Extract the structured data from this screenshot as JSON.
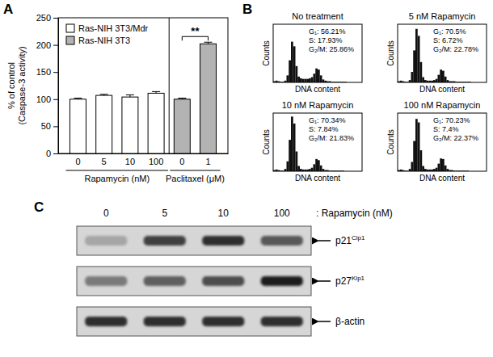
{
  "chart_data": [
    {
      "type": "bar",
      "panel": "A",
      "ylabel": [
        "% of control",
        "(Caspase-3 activity)"
      ],
      "categories": [
        "0",
        "5",
        "10",
        "100",
        "0",
        "1"
      ],
      "series": [
        {
          "name": "Ras-NIH 3T3/Mdr",
          "color": "#ffffff",
          "values": [
            100,
            107,
            104,
            111,
            null,
            null
          ],
          "errors": [
            2,
            2,
            4,
            3,
            null,
            null
          ]
        },
        {
          "name": "Ras-NIH 3T3",
          "color": "#b3b3b3",
          "values": [
            null,
            null,
            null,
            null,
            100,
            202
          ],
          "errors": [
            null,
            null,
            null,
            null,
            2,
            3
          ]
        }
      ],
      "x_groups": [
        {
          "label": "Rapamycin (nM)",
          "count": 4
        },
        {
          "label": "Paclitaxel (μM)",
          "count": 2
        }
      ],
      "ylim": [
        0,
        250
      ],
      "yticks": [
        0,
        50,
        100,
        150,
        200,
        250
      ],
      "legend": "top-left",
      "annotations": [
        {
          "text": "**",
          "between": [
            4,
            5
          ]
        }
      ]
    },
    {
      "type": "histogram",
      "panel": "B",
      "title": "No treatment",
      "xlabel": "DNA content",
      "ylabel": "Counts",
      "color": "#111111",
      "tick_labels": false,
      "xlim": [
        0,
        1000
      ],
      "ylim": [
        0,
        100
      ],
      "bins": [
        0,
        25,
        50,
        75,
        100,
        125,
        150,
        175,
        200,
        225,
        250,
        275,
        300,
        325,
        350,
        375,
        400,
        425,
        450,
        475,
        500,
        525,
        550,
        575,
        600,
        625,
        650,
        675,
        700,
        725,
        750,
        775,
        800,
        825,
        850,
        875,
        900,
        925,
        950,
        975,
        1000
      ],
      "values": [
        2,
        3,
        2,
        1,
        1,
        3,
        12,
        38,
        70,
        62,
        28,
        10,
        7,
        6,
        6,
        6,
        7,
        9,
        15,
        24,
        22,
        12,
        5,
        3,
        2,
        2,
        1,
        1,
        1,
        1,
        1,
        1,
        1,
        0,
        0,
        0,
        0,
        0,
        0,
        0
      ],
      "annotations": [
        "G₁: 56.21%",
        "S: 17.93%",
        "G₂/M: 25.86%"
      ]
    },
    {
      "type": "histogram",
      "title": "5 nM Rapamycin",
      "xlabel": "DNA content",
      "ylabel": "Counts",
      "color": "#111111",
      "tick_labels": false,
      "xlim": [
        0,
        1000
      ],
      "ylim": [
        0,
        100
      ],
      "bins": [
        0,
        25,
        50,
        75,
        100,
        125,
        150,
        175,
        200,
        225,
        250,
        275,
        300,
        325,
        350,
        375,
        400,
        425,
        450,
        475,
        500,
        525,
        550,
        575,
        600,
        625,
        650,
        675,
        700,
        725,
        750,
        775,
        800,
        825,
        850,
        875,
        900,
        925,
        950,
        975,
        1000
      ],
      "values": [
        2,
        3,
        2,
        1,
        1,
        4,
        18,
        55,
        92,
        80,
        35,
        9,
        4,
        3,
        3,
        3,
        4,
        6,
        13,
        22,
        20,
        10,
        4,
        2,
        2,
        2,
        1,
        1,
        1,
        1,
        1,
        1,
        1,
        0,
        0,
        0,
        0,
        0,
        0,
        0
      ],
      "annotations": [
        "G₁: 70.5%",
        "S: 6.72%",
        "G₂/M: 22.78%"
      ]
    },
    {
      "type": "histogram",
      "title": "10 nM Rapamycin",
      "xlabel": "DNA content",
      "ylabel": "Counts",
      "color": "#111111",
      "tick_labels": false,
      "xlim": [
        0,
        1000
      ],
      "ylim": [
        0,
        100
      ],
      "bins": [
        0,
        25,
        50,
        75,
        100,
        125,
        150,
        175,
        200,
        225,
        250,
        275,
        300,
        325,
        350,
        375,
        400,
        425,
        450,
        475,
        500,
        525,
        550,
        575,
        600,
        625,
        650,
        675,
        700,
        725,
        750,
        775,
        800,
        825,
        850,
        875,
        900,
        925,
        950,
        975,
        1000
      ],
      "values": [
        2,
        3,
        2,
        1,
        1,
        4,
        17,
        54,
        94,
        82,
        34,
        9,
        4,
        3,
        3,
        3,
        4,
        6,
        12,
        21,
        19,
        10,
        4,
        2,
        2,
        1,
        1,
        1,
        1,
        1,
        1,
        1,
        0,
        0,
        0,
        0,
        0,
        0,
        0,
        0
      ],
      "annotations": [
        "G₁: 70.34%",
        "S: 7.84%",
        "G₂/M: 21.83%"
      ]
    },
    {
      "type": "histogram",
      "title": "100 nM Rapamycin",
      "xlabel": "DNA content",
      "ylabel": "Counts",
      "color": "#111111",
      "tick_labels": false,
      "xlim": [
        0,
        1000
      ],
      "ylim": [
        0,
        100
      ],
      "bins": [
        0,
        25,
        50,
        75,
        100,
        125,
        150,
        175,
        200,
        225,
        250,
        275,
        300,
        325,
        350,
        375,
        400,
        425,
        450,
        475,
        500,
        525,
        550,
        575,
        600,
        625,
        650,
        675,
        700,
        725,
        750,
        775,
        800,
        825,
        850,
        875,
        900,
        925,
        950,
        975,
        1000
      ],
      "values": [
        2,
        3,
        2,
        1,
        1,
        4,
        16,
        52,
        90,
        84,
        36,
        9,
        4,
        3,
        3,
        3,
        4,
        6,
        13,
        22,
        21,
        10,
        4,
        2,
        2,
        1,
        1,
        1,
        1,
        1,
        1,
        1,
        0,
        0,
        0,
        0,
        0,
        0,
        0,
        0
      ],
      "annotations": [
        "G₁: 70.23%",
        "S: 7.4%",
        "G₂/M: 22.37%"
      ]
    }
  ],
  "blot": {
    "panel": "C",
    "lanes": [
      "0",
      "5",
      "10",
      "100"
    ],
    "lane_title": ": Rapamycin (nM)",
    "rows": [
      {
        "label": "p21",
        "sup": "Cip1",
        "intensity": [
          0.45,
          0.8,
          0.85,
          0.72
        ]
      },
      {
        "label": "p27",
        "sup": "Kip1",
        "intensity": [
          0.6,
          0.7,
          0.76,
          0.9
        ]
      },
      {
        "label": "β-actin",
        "intensity": [
          0.85,
          0.85,
          0.85,
          0.85
        ]
      }
    ]
  }
}
